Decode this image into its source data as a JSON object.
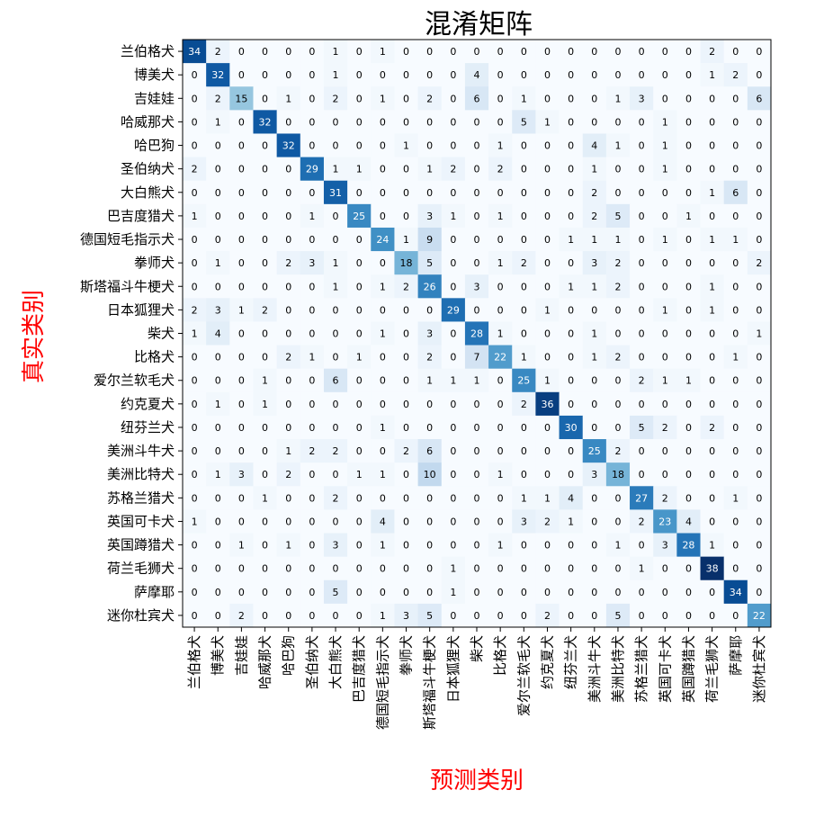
{
  "chart_data": {
    "type": "heatmap",
    "title": "混淆矩阵",
    "xlabel": "预测类别",
    "ylabel": "真实类别",
    "colormap": "Blues",
    "value_range": [
      0,
      38
    ],
    "labels": [
      "兰伯格犬",
      "博美犬",
      "吉娃娃",
      "哈威那犬",
      "哈巴狗",
      "圣伯纳犬",
      "大白熊犬",
      "巴吉度猎犬",
      "德国短毛指示犬",
      "拳师犬",
      "斯塔福斗牛梗犬",
      "日本狐狸犬",
      "柴犬",
      "比格犬",
      "爱尔兰软毛犬",
      "约克夏犬",
      "纽芬兰犬",
      "美洲斗牛犬",
      "美洲比特犬",
      "苏格兰猎犬",
      "英国可卡犬",
      "英国蹲猎犬",
      "荷兰毛狮犬",
      "萨摩耶",
      "迷你杜宾犬"
    ],
    "matrix": [
      [
        34,
        2,
        0,
        0,
        0,
        0,
        1,
        0,
        1,
        0,
        0,
        0,
        0,
        0,
        0,
        0,
        0,
        0,
        0,
        0,
        0,
        0,
        2,
        0,
        0
      ],
      [
        0,
        32,
        0,
        0,
        0,
        0,
        1,
        0,
        0,
        0,
        0,
        0,
        4,
        0,
        0,
        0,
        0,
        0,
        0,
        0,
        0,
        0,
        1,
        2,
        0
      ],
      [
        0,
        2,
        15,
        0,
        1,
        0,
        2,
        0,
        1,
        0,
        2,
        0,
        6,
        0,
        1,
        0,
        0,
        0,
        1,
        3,
        0,
        0,
        0,
        0,
        6
      ],
      [
        0,
        1,
        0,
        32,
        0,
        0,
        0,
        0,
        0,
        0,
        0,
        0,
        0,
        0,
        5,
        1,
        0,
        0,
        0,
        0,
        1,
        0,
        0,
        0,
        0
      ],
      [
        0,
        0,
        0,
        0,
        32,
        0,
        0,
        0,
        0,
        1,
        0,
        0,
        0,
        1,
        0,
        0,
        0,
        4,
        1,
        0,
        1,
        0,
        0,
        0,
        0
      ],
      [
        2,
        0,
        0,
        0,
        0,
        29,
        1,
        1,
        0,
        0,
        1,
        2,
        0,
        2,
        0,
        0,
        0,
        1,
        0,
        0,
        1,
        0,
        0,
        0,
        0
      ],
      [
        0,
        0,
        0,
        0,
        0,
        0,
        31,
        0,
        0,
        0,
        0,
        0,
        0,
        0,
        0,
        0,
        0,
        2,
        0,
        0,
        0,
        0,
        1,
        6,
        0
      ],
      [
        1,
        0,
        0,
        0,
        0,
        1,
        0,
        25,
        0,
        0,
        3,
        1,
        0,
        1,
        0,
        0,
        0,
        2,
        5,
        0,
        0,
        1,
        0,
        0,
        0
      ],
      [
        0,
        0,
        0,
        0,
        0,
        0,
        0,
        0,
        24,
        1,
        9,
        0,
        0,
        0,
        0,
        0,
        1,
        1,
        1,
        0,
        1,
        0,
        1,
        1,
        0
      ],
      [
        0,
        1,
        0,
        0,
        2,
        3,
        1,
        0,
        0,
        18,
        5,
        0,
        0,
        1,
        2,
        0,
        0,
        3,
        2,
        0,
        0,
        0,
        0,
        0,
        2
      ],
      [
        0,
        0,
        0,
        0,
        0,
        0,
        1,
        0,
        1,
        2,
        26,
        0,
        3,
        0,
        0,
        0,
        1,
        1,
        2,
        0,
        0,
        0,
        1,
        0,
        0
      ],
      [
        2,
        3,
        1,
        2,
        0,
        0,
        0,
        0,
        0,
        0,
        0,
        29,
        0,
        0,
        0,
        1,
        0,
        0,
        0,
        0,
        1,
        0,
        1,
        0,
        0
      ],
      [
        1,
        4,
        0,
        0,
        0,
        0,
        0,
        0,
        1,
        0,
        3,
        0,
        28,
        1,
        0,
        0,
        0,
        1,
        0,
        0,
        0,
        0,
        0,
        0,
        1
      ],
      [
        0,
        0,
        0,
        0,
        2,
        1,
        0,
        1,
        0,
        0,
        2,
        0,
        7,
        22,
        1,
        0,
        0,
        1,
        2,
        0,
        0,
        0,
        0,
        1,
        0
      ],
      [
        0,
        0,
        0,
        1,
        0,
        0,
        6,
        0,
        0,
        0,
        1,
        1,
        1,
        0,
        25,
        1,
        0,
        0,
        0,
        2,
        1,
        1,
        0,
        0,
        0
      ],
      [
        0,
        1,
        0,
        1,
        0,
        0,
        0,
        0,
        0,
        0,
        0,
        0,
        0,
        0,
        2,
        36,
        0,
        0,
        0,
        0,
        0,
        0,
        0,
        0,
        0
      ],
      [
        0,
        0,
        0,
        0,
        0,
        0,
        0,
        0,
        1,
        0,
        0,
        0,
        0,
        0,
        0,
        0,
        30,
        0,
        0,
        5,
        2,
        0,
        2,
        0,
        0
      ],
      [
        0,
        0,
        0,
        0,
        1,
        2,
        2,
        0,
        0,
        2,
        6,
        0,
        0,
        0,
        0,
        0,
        0,
        25,
        2,
        0,
        0,
        0,
        0,
        0,
        0
      ],
      [
        0,
        1,
        3,
        0,
        2,
        0,
        0,
        1,
        1,
        0,
        10,
        0,
        0,
        1,
        0,
        0,
        0,
        3,
        18,
        0,
        0,
        0,
        0,
        0,
        0
      ],
      [
        0,
        0,
        0,
        1,
        0,
        0,
        2,
        0,
        0,
        0,
        0,
        0,
        0,
        0,
        1,
        1,
        4,
        0,
        0,
        27,
        2,
        0,
        0,
        1,
        0
      ],
      [
        1,
        0,
        0,
        0,
        0,
        0,
        0,
        0,
        4,
        0,
        0,
        0,
        0,
        0,
        3,
        2,
        1,
        0,
        0,
        2,
        23,
        4,
        0,
        0,
        0
      ],
      [
        0,
        0,
        1,
        0,
        1,
        0,
        3,
        0,
        1,
        0,
        0,
        0,
        0,
        1,
        0,
        0,
        0,
        0,
        1,
        0,
        3,
        28,
        1,
        0,
        0
      ],
      [
        0,
        0,
        0,
        0,
        0,
        0,
        0,
        0,
        0,
        0,
        0,
        1,
        0,
        0,
        0,
        0,
        0,
        0,
        0,
        1,
        0,
        0,
        38,
        0,
        0
      ],
      [
        0,
        0,
        0,
        0,
        0,
        0,
        5,
        0,
        0,
        0,
        0,
        1,
        0,
        0,
        0,
        0,
        0,
        0,
        0,
        0,
        0,
        0,
        0,
        34,
        0
      ],
      [
        0,
        0,
        2,
        0,
        0,
        0,
        0,
        0,
        1,
        3,
        5,
        0,
        0,
        0,
        0,
        2,
        0,
        0,
        5,
        0,
        0,
        0,
        0,
        0,
        22
      ]
    ]
  }
}
